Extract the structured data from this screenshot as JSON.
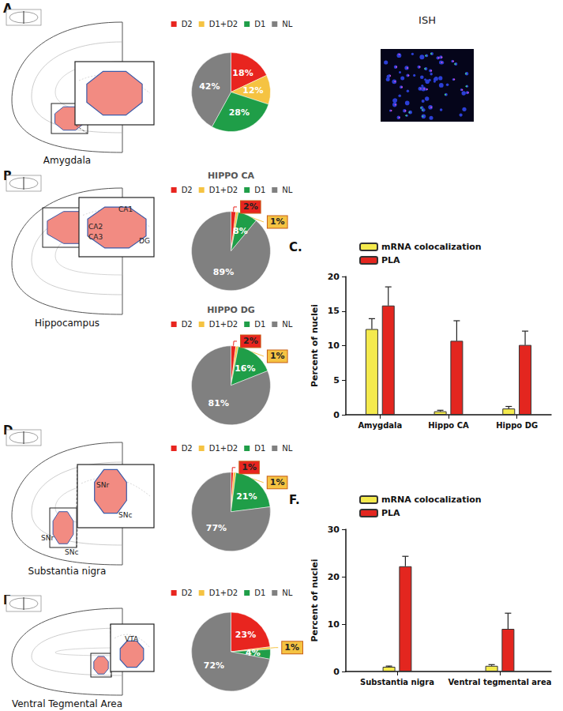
{
  "image_title": "ISH",
  "panels": [
    {
      "label": "A.",
      "region": "Amygdala",
      "atlas_labels": []
    },
    {
      "label": "B.",
      "region": "Hippocampus",
      "atlas_labels": [
        "CA1",
        "CA2",
        "CA3",
        "DG"
      ]
    },
    {
      "label": "C."
    },
    {
      "label": "D.",
      "region": "Substantia nigra",
      "atlas_labels": [
        "SNr",
        "SNc"
      ]
    },
    {
      "label": "E.",
      "region": "Ventral Tegmental Area",
      "atlas_labels": [
        "VTA"
      ]
    },
    {
      "label": "F."
    }
  ],
  "chart_data": [
    {
      "type": "pie",
      "categories": [
        "D2",
        "D1+D2",
        "D1",
        "NL"
      ],
      "values": [
        18,
        12,
        28,
        42
      ],
      "value_labels": [
        "18%",
        "12%",
        "28%",
        "42%"
      ],
      "colors": [
        "#e8251f",
        "#f5c342",
        "#1f9e48",
        "#808080"
      ],
      "data_labels": true,
      "legend": "top"
    },
    {
      "type": "pie",
      "title": "HIPPO CA",
      "categories": [
        "D2",
        "D1+D2",
        "D1",
        "NL"
      ],
      "values": [
        2,
        1,
        8,
        89
      ],
      "value_labels": [
        "2%",
        "1%",
        "8%",
        "89%"
      ],
      "colors": [
        "#e8251f",
        "#f5c342",
        "#1f9e48",
        "#808080"
      ],
      "data_labels": true,
      "legend": "top"
    },
    {
      "type": "pie",
      "title": "HIPPO DG",
      "categories": [
        "D2",
        "D1+D2",
        "D1",
        "NL"
      ],
      "values": [
        2,
        1,
        16,
        81
      ],
      "value_labels": [
        "2%",
        "1%",
        "16%",
        "81%"
      ],
      "colors": [
        "#e8251f",
        "#f5c342",
        "#1f9e48",
        "#808080"
      ],
      "data_labels": true,
      "legend": "top"
    },
    {
      "type": "bar",
      "categories": [
        "Amygdala",
        "Hippo CA",
        "Hippo DG"
      ],
      "series": [
        {
          "name": "mRNA colocalization",
          "color": "#f4ea4d",
          "values": [
            12.4,
            0.5,
            0.9
          ],
          "errors": [
            1.5,
            0.15,
            0.3
          ]
        },
        {
          "name": "PLA",
          "color": "#e3261f",
          "values": [
            15.8,
            10.7,
            10.1
          ],
          "errors": [
            2.7,
            2.9,
            2.0
          ]
        }
      ],
      "ylabel": "Percent of nuclei",
      "ylim": [
        0,
        20
      ],
      "yticks": [
        0,
        5,
        10,
        15,
        20
      ],
      "grid": false,
      "legend": "upper left"
    },
    {
      "type": "pie",
      "categories": [
        "D2",
        "D1+D2",
        "D1",
        "NL"
      ],
      "values": [
        1,
        1,
        21,
        77
      ],
      "value_labels": [
        "1%",
        "1%",
        "21%",
        "77%"
      ],
      "colors": [
        "#e8251f",
        "#f5c342",
        "#1f9e48",
        "#808080"
      ],
      "data_labels": true,
      "legend": "top"
    },
    {
      "type": "pie",
      "categories": [
        "D2",
        "D1+D2",
        "D1",
        "NL"
      ],
      "values": [
        23,
        1,
        4,
        72
      ],
      "value_labels": [
        "23%",
        "1%",
        "4%",
        "72%"
      ],
      "colors": [
        "#e8251f",
        "#f5c342",
        "#1f9e48",
        "#808080"
      ],
      "data_labels": true,
      "legend": "top"
    },
    {
      "type": "bar",
      "categories": [
        "Substantia nigra",
        "Ventral tegmental area"
      ],
      "series": [
        {
          "name": "mRNA colocalization",
          "color": "#f4ea4d",
          "values": [
            1.0,
            1.2
          ],
          "errors": [
            0.15,
            0.25
          ]
        },
        {
          "name": "PLA",
          "color": "#e3261f",
          "values": [
            22.2,
            9.0
          ],
          "errors": [
            2.1,
            3.3
          ]
        }
      ],
      "ylabel": "Percent of nuclei",
      "ylim": [
        0,
        30
      ],
      "yticks": [
        0,
        10,
        20,
        30
      ],
      "grid": false,
      "legend": "upper left"
    }
  ]
}
